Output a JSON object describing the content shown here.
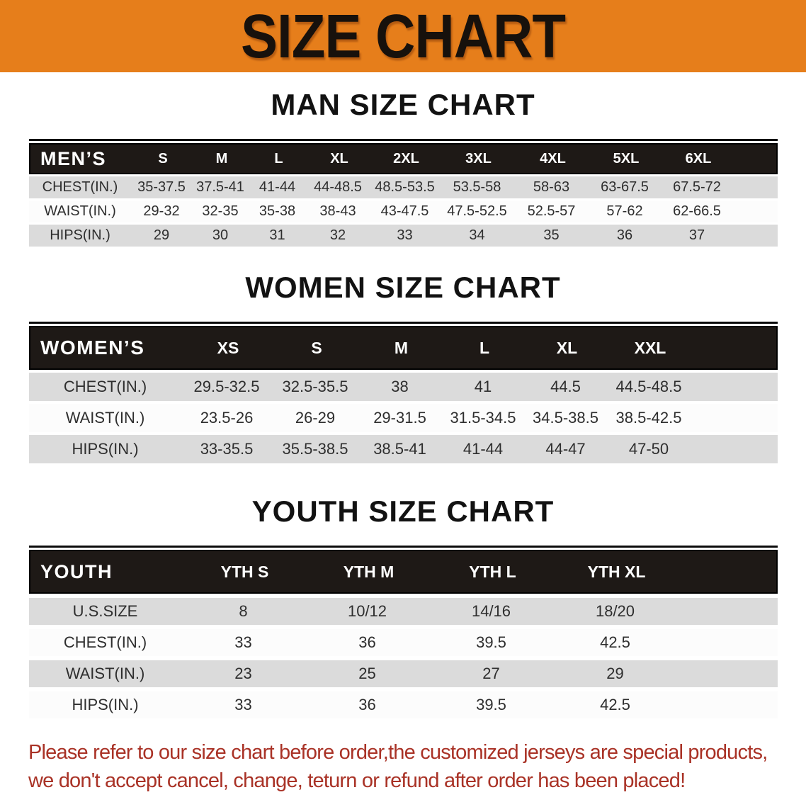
{
  "banner": {
    "title": "SIZE CHART"
  },
  "colors": {
    "banner_bg": "#E67E1B",
    "header_bar_bg": "#1E1916",
    "row_shade": "#DBDBDB",
    "footer_text": "#A93226"
  },
  "sections": [
    {
      "heading": "MAN SIZE CHART",
      "table": {
        "corner": "MEN’S",
        "columns": [
          "S",
          "M",
          "L",
          "XL",
          "2XL",
          "3XL",
          "4XL",
          "5XL",
          "6XL"
        ],
        "rows": [
          {
            "label": "CHEST(IN.)",
            "values": [
              "35-37.5",
              "37.5-41",
              "41-44",
              "44-48.5",
              "48.5-53.5",
              "53.5-58",
              "58-63",
              "63-67.5",
              "67.5-72"
            ]
          },
          {
            "label": "WAIST(IN.)",
            "values": [
              "29-32",
              "32-35",
              "35-38",
              "38-43",
              "43-47.5",
              "47.5-52.5",
              "52.5-57",
              "57-62",
              "62-66.5"
            ]
          },
          {
            "label": "HIPS(IN.)",
            "values": [
              "29",
              "30",
              "31",
              "32",
              "33",
              "34",
              "35",
              "36",
              "37"
            ]
          }
        ]
      }
    },
    {
      "heading": "WOMEN SIZE CHART",
      "table": {
        "corner": "WOMEN’S",
        "columns": [
          "XS",
          "S",
          "M",
          "L",
          "XL",
          "XXL"
        ],
        "rows": [
          {
            "label": "CHEST(IN.)",
            "values": [
              "29.5-32.5",
              "32.5-35.5",
              "38",
              "41",
              "44.5",
              "44.5-48.5"
            ]
          },
          {
            "label": "WAIST(IN.)",
            "values": [
              "23.5-26",
              "26-29",
              "29-31.5",
              "31.5-34.5",
              "34.5-38.5",
              "38.5-42.5"
            ]
          },
          {
            "label": "HIPS(IN.)",
            "values": [
              "33-35.5",
              "35.5-38.5",
              "38.5-41",
              "41-44",
              "44-47",
              "47-50"
            ]
          }
        ]
      }
    },
    {
      "heading": "YOUTH SIZE CHART",
      "table": {
        "corner": "YOUTH",
        "columns": [
          "YTH S",
          "YTH M",
          "YTH L",
          "YTH XL"
        ],
        "rows": [
          {
            "label": "U.S.SIZE",
            "values": [
              "8",
              "10/12",
              "14/16",
              "18/20"
            ]
          },
          {
            "label": "CHEST(IN.)",
            "values": [
              "33",
              "36",
              "39.5",
              "42.5"
            ]
          },
          {
            "label": "WAIST(IN.)",
            "values": [
              "23",
              "25",
              "27",
              "29"
            ]
          },
          {
            "label": "HIPS(IN.)",
            "values": [
              "33",
              "36",
              "39.5",
              "42.5"
            ]
          }
        ]
      }
    }
  ],
  "footer": {
    "line1": "Please refer to our size chart before order,the customized jerseys are special products,",
    "line2": "we don't accept cancel, change, teturn or refund after order has been placed!"
  }
}
